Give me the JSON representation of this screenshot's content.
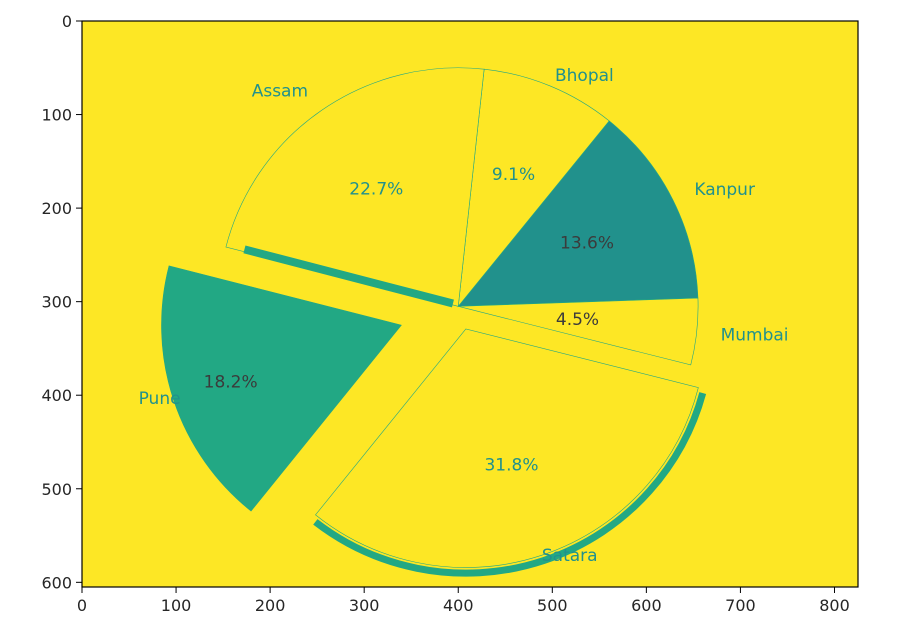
{
  "chart_data": {
    "type": "pie",
    "title": "",
    "xlabel": "",
    "ylabel": "",
    "xlim": [
      0,
      825
    ],
    "ylim": [
      605,
      0
    ],
    "x_ticks": [
      0,
      100,
      200,
      300,
      400,
      500,
      600,
      700,
      800
    ],
    "y_ticks": [
      0,
      100,
      200,
      300,
      400,
      500,
      600
    ],
    "x_tick_labels": [
      "0",
      "100",
      "200",
      "300",
      "400",
      "500",
      "600",
      "700",
      "800"
    ],
    "y_tick_labels": [
      "0",
      "100",
      "200",
      "300",
      "400",
      "500",
      "600"
    ],
    "background_color": "#fde725",
    "slices": [
      {
        "label": "Kanpur",
        "percent_label": "13.6%",
        "value": 13.6,
        "color": "#21918c",
        "label_color": "#21918c",
        "pct_color": "#3b3b3b"
      },
      {
        "label": "Bhopal",
        "percent_label": "9.1%",
        "value": 9.1,
        "color": "#fde725",
        "label_color": "#21918c",
        "pct_color": "#21918c"
      },
      {
        "label": "Assam",
        "percent_label": "22.7%",
        "value": 22.7,
        "color": "#fde725",
        "label_color": "#21918c",
        "pct_color": "#21918c"
      },
      {
        "label": "Pune",
        "percent_label": "18.2%",
        "value": 18.2,
        "color": "#22a884",
        "label_color": "#21918c",
        "pct_color": "#3b3b3b"
      },
      {
        "label": "Satara",
        "percent_label": "31.8%",
        "value": 31.8,
        "color": "#fde725",
        "label_color": "#21918c",
        "pct_color": "#21918c"
      },
      {
        "label": "Mumbai",
        "percent_label": "4.5%",
        "value": 4.5,
        "color": "#fde725",
        "label_color": "#21918c",
        "pct_color": "#3b3b3b"
      }
    ]
  }
}
